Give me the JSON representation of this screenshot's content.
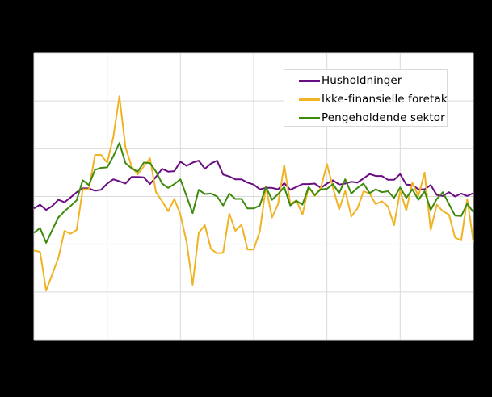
{
  "chart_data": {
    "type": "line",
    "title": "",
    "xlabel": "",
    "ylabel": "",
    "x_tick_labels_visible": false,
    "y_tick_labels_visible": false,
    "y_units_note": "Values in gridline units (bottom gridline = 0, top = 6); axis labels not visible",
    "ylim": [
      0,
      6
    ],
    "grid": true,
    "legend_position": "upper right",
    "x_gridlines": 7,
    "y_gridlines": 7,
    "n_points": 73,
    "series": [
      {
        "name": "Husholdninger",
        "color": "#6a0d83",
        "values": [
          2.75,
          2.83,
          2.72,
          2.8,
          2.93,
          2.88,
          2.98,
          3.09,
          3.17,
          3.17,
          3.12,
          3.14,
          3.27,
          3.36,
          3.32,
          3.27,
          3.41,
          3.41,
          3.4,
          3.26,
          3.41,
          3.58,
          3.52,
          3.53,
          3.73,
          3.64,
          3.71,
          3.75,
          3.58,
          3.69,
          3.75,
          3.46,
          3.42,
          3.36,
          3.36,
          3.29,
          3.25,
          3.15,
          3.18,
          3.18,
          3.15,
          3.28,
          3.14,
          3.2,
          3.26,
          3.26,
          3.27,
          3.18,
          3.27,
          3.34,
          3.25,
          3.27,
          3.31,
          3.29,
          3.38,
          3.47,
          3.43,
          3.43,
          3.35,
          3.35,
          3.47,
          3.25,
          3.24,
          3.15,
          3.15,
          3.24,
          3.03,
          3.01,
          3.09,
          3.0,
          3.06,
          3.01,
          3.07
        ]
      },
      {
        "name": "Ikke-finansielle foretak",
        "color": "#f0b323",
        "values": [
          1.87,
          1.84,
          1.03,
          1.37,
          1.71,
          2.28,
          2.22,
          2.3,
          3.15,
          3.15,
          3.87,
          3.87,
          3.71,
          4.24,
          5.1,
          4.03,
          3.63,
          3.46,
          3.63,
          3.8,
          3.09,
          2.9,
          2.69,
          2.95,
          2.62,
          2.05,
          1.15,
          2.24,
          2.4,
          1.9,
          1.81,
          1.82,
          2.64,
          2.28,
          2.41,
          1.89,
          1.89,
          2.27,
          3.2,
          2.56,
          2.84,
          3.66,
          2.84,
          2.92,
          2.62,
          3.2,
          3.01,
          3.18,
          3.68,
          3.18,
          2.73,
          3.12,
          2.58,
          2.75,
          3.11,
          3.06,
          2.84,
          2.9,
          2.79,
          2.4,
          3.12,
          2.71,
          3.29,
          3.01,
          3.5,
          2.3,
          2.83,
          2.69,
          2.62,
          2.14,
          2.08,
          2.95,
          2.05
        ]
      },
      {
        "name": "Pengeholdende sektor",
        "color": "#3e8a0d",
        "values": [
          2.24,
          2.34,
          2.03,
          2.3,
          2.56,
          2.69,
          2.8,
          2.92,
          3.34,
          3.24,
          3.56,
          3.6,
          3.61,
          3.84,
          4.12,
          3.7,
          3.59,
          3.52,
          3.71,
          3.7,
          3.52,
          3.27,
          3.18,
          3.26,
          3.36,
          3.01,
          2.65,
          3.14,
          3.05,
          3.06,
          3.0,
          2.81,
          3.06,
          2.95,
          2.95,
          2.75,
          2.75,
          2.81,
          3.2,
          2.93,
          3.05,
          3.2,
          2.81,
          2.91,
          2.83,
          3.2,
          3.03,
          3.15,
          3.16,
          3.26,
          3.07,
          3.36,
          3.06,
          3.18,
          3.27,
          3.07,
          3.15,
          3.09,
          3.11,
          2.97,
          3.19,
          2.97,
          3.15,
          2.93,
          3.11,
          2.72,
          2.95,
          3.09,
          2.84,
          2.6,
          2.59,
          2.85,
          2.67
        ]
      }
    ]
  },
  "legend": {
    "items": [
      {
        "label": "Husholdninger",
        "color": "#6a0d83"
      },
      {
        "label": "Ikke-finansielle foretak",
        "color": "#f0b323"
      },
      {
        "label": "Pengeholdende sektor",
        "color": "#3e8a0d"
      }
    ]
  },
  "colors": {
    "background": "#000000",
    "plot_background": "#ffffff",
    "gridline": "#d9d9d9"
  }
}
